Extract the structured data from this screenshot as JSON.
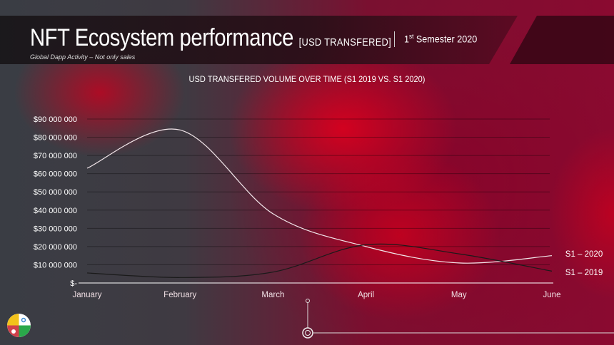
{
  "header": {
    "title": "NFT Ecosystem performance",
    "title_suffix": "[USD TRANSFERED]",
    "subtitle": "Global Dapp Activity – Not only sales",
    "semester_sup": "st",
    "semester_num": "1",
    "semester_rest": " Semester 2020"
  },
  "chart_data": {
    "type": "line",
    "title": "USD TRANSFERED VOLUME OVER TIME (S1 2019 VS. S1 2020)",
    "categories": [
      "January",
      "February",
      "March",
      "April",
      "May",
      "June"
    ],
    "yticks": [
      "$-",
      "$10 000 000",
      "$20 000 000",
      "$30 000 000",
      "$40 000 000",
      "$50 000 000",
      "$60 000 000",
      "$70 000 000",
      "$80 000 000",
      "$90 000 000"
    ],
    "ylim": [
      0,
      90000000
    ],
    "grid": true,
    "series": [
      {
        "name": "S1 – 2020",
        "color": "#f2e6ea",
        "values": [
          63000000,
          84000000,
          38000000,
          20000000,
          11000000,
          15000000
        ]
      },
      {
        "name": "S1 – 2019",
        "color": "#1a1a1a",
        "values": [
          5500000,
          3000000,
          6000000,
          21000000,
          16000000,
          6500000
        ]
      }
    ]
  },
  "colors": {
    "header_bg": "#1a1416"
  }
}
